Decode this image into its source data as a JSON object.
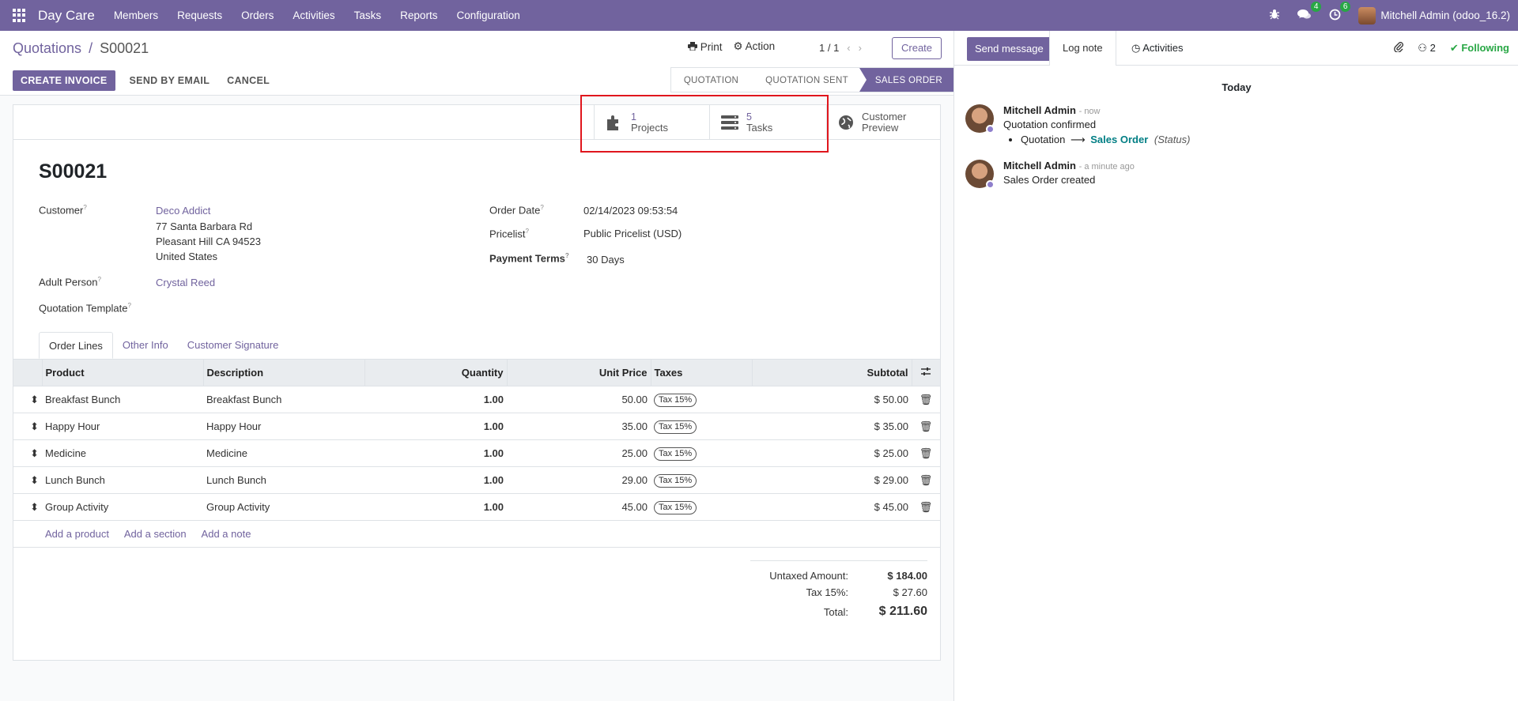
{
  "nav": {
    "app_name": "Day Care",
    "menus": [
      "Members",
      "Requests",
      "Orders",
      "Activities",
      "Tasks",
      "Reports",
      "Configuration"
    ],
    "messages_badge": "4",
    "activities_badge": "6",
    "user": "Mitchell Admin (odoo_16.2)"
  },
  "breadcrumb": {
    "parent": "Quotations",
    "sep": "/",
    "current": "S00021"
  },
  "cp": {
    "print": "Print",
    "action": "Action",
    "pager": "1 / 1",
    "create": "Create",
    "create_invoice": "CREATE INVOICE",
    "send_email": "SEND BY EMAIL",
    "cancel": "CANCEL"
  },
  "statusbar": {
    "stages": [
      "QUOTATION",
      "QUOTATION SENT",
      "SALES ORDER"
    ],
    "active": "SALES ORDER"
  },
  "smart_buttons": {
    "projects_value": "1",
    "projects_label": "Projects",
    "tasks_value": "5",
    "tasks_label": "Tasks",
    "preview_line1": "Customer",
    "preview_line2": "Preview"
  },
  "form": {
    "title": "S00021",
    "customer_label": "Customer",
    "customer_name": "Deco Addict",
    "address1": "77 Santa Barbara Rd",
    "address2": "Pleasant Hill CA 94523",
    "address3": "United States",
    "adult_label": "Adult Person",
    "adult_value": "Crystal Reed",
    "template_label": "Quotation Template",
    "order_date_label": "Order Date",
    "order_date": "02/14/2023 09:53:54",
    "pricelist_label": "Pricelist",
    "pricelist": "Public Pricelist (USD)",
    "terms_label": "Payment Terms",
    "terms": "30 Days",
    "tooltip_mark": "?"
  },
  "tabs": [
    "Order Lines",
    "Other Info",
    "Customer Signature"
  ],
  "lines": {
    "headers": {
      "product": "Product",
      "description": "Description",
      "quantity": "Quantity",
      "unit_price": "Unit Price",
      "taxes": "Taxes",
      "subtotal": "Subtotal"
    },
    "rows": [
      {
        "product": "Breakfast Bunch",
        "description": "Breakfast Bunch",
        "qty": "1.00",
        "price": "50.00",
        "tax": "Tax 15%",
        "subtotal": "$ 50.00"
      },
      {
        "product": "Happy Hour",
        "description": "Happy Hour",
        "qty": "1.00",
        "price": "35.00",
        "tax": "Tax 15%",
        "subtotal": "$ 35.00"
      },
      {
        "product": "Medicine",
        "description": "Medicine",
        "qty": "1.00",
        "price": "25.00",
        "tax": "Tax 15%",
        "subtotal": "$ 25.00"
      },
      {
        "product": "Lunch Bunch",
        "description": "Lunch Bunch",
        "qty": "1.00",
        "price": "29.00",
        "tax": "Tax 15%",
        "subtotal": "$ 29.00"
      },
      {
        "product": "Group Activity",
        "description": "Group Activity",
        "qty": "1.00",
        "price": "45.00",
        "tax": "Tax 15%",
        "subtotal": "$ 45.00"
      }
    ],
    "add_product": "Add a product",
    "add_section": "Add a section",
    "add_note": "Add a note"
  },
  "totals": {
    "untaxed_label": "Untaxed Amount:",
    "untaxed": "$ 184.00",
    "tax_label": "Tax 15%:",
    "tax": "$ 27.60",
    "total_label": "Total:",
    "total": "$ 211.60"
  },
  "chatter": {
    "send_message": "Send message",
    "log_note": "Log note",
    "activities": "Activities",
    "followers_count": "2",
    "following": "Following",
    "today": "Today",
    "msg1": {
      "author": "Mitchell Admin",
      "when": "- now",
      "text": "Quotation confirmed",
      "from": "Quotation",
      "to": "Sales Order",
      "field": "(Status)"
    },
    "msg2": {
      "author": "Mitchell Admin",
      "when": "- a minute ago",
      "text": "Sales Order created"
    }
  },
  "colors": {
    "brand": "#71639e",
    "teal": "#017e84",
    "green": "#28a745",
    "highlight": "#e0161d"
  }
}
